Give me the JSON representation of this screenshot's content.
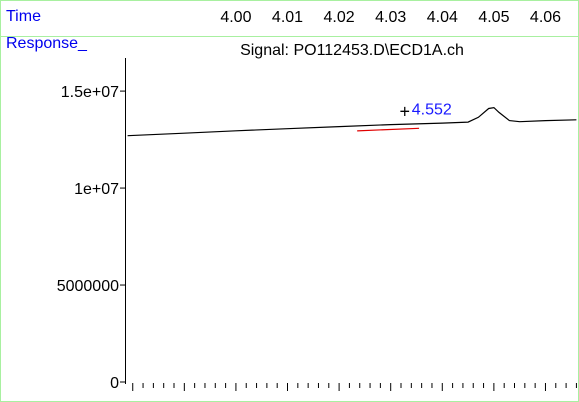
{
  "header": {
    "time_label": "Time",
    "response_label": "Response_",
    "signal_title": "Signal: PO112453.D\\ECD1A.ch"
  },
  "colors": {
    "axis_label_blue": "#0000ee",
    "peak_label_blue": "#1a1aff",
    "trace": "#000000",
    "baseline": "#e00000",
    "frame_green": "#a8f0a0"
  },
  "chart_data": {
    "type": "line",
    "title": "Signal: PO112453.D\\ECD1A.ch",
    "xlabel": "Time",
    "ylabel": "Response_",
    "x_ticks": [
      "4.00",
      "4.01",
      "4.02",
      "4.03",
      "4.04",
      "4.05",
      "4.06"
    ],
    "x_tick_values": [
      4.0,
      4.01,
      4.02,
      4.03,
      4.04,
      4.05,
      4.06
    ],
    "y_ticks": [
      "0",
      "5000000",
      "1e+07",
      "1.5e+07"
    ],
    "y_tick_values": [
      0,
      5000000,
      10000000,
      15000000
    ],
    "xlim": [
      3.9785,
      4.0665
    ],
    "ylim": [
      0,
      16500000
    ],
    "series": [
      {
        "x": [
          3.979,
          3.99,
          4.0,
          4.01,
          4.02,
          4.03,
          4.04,
          4.045,
          4.047,
          4.049,
          4.05,
          4.051,
          4.053,
          4.055,
          4.06,
          4.066
        ],
        "y": [
          12700000,
          12830000,
          12950000,
          13060000,
          13170000,
          13270000,
          13350000,
          13400000,
          13650000,
          14100000,
          14150000,
          13900000,
          13480000,
          13420000,
          13480000,
          13520000
        ]
      }
    ],
    "baseline_segment": {
      "x": [
        4.0235,
        4.0355
      ],
      "y": [
        12950000,
        13080000
      ]
    },
    "annotations": [
      {
        "text": "4.552",
        "x": 4.0335,
        "y": 13700000,
        "marker": "+"
      }
    ]
  }
}
